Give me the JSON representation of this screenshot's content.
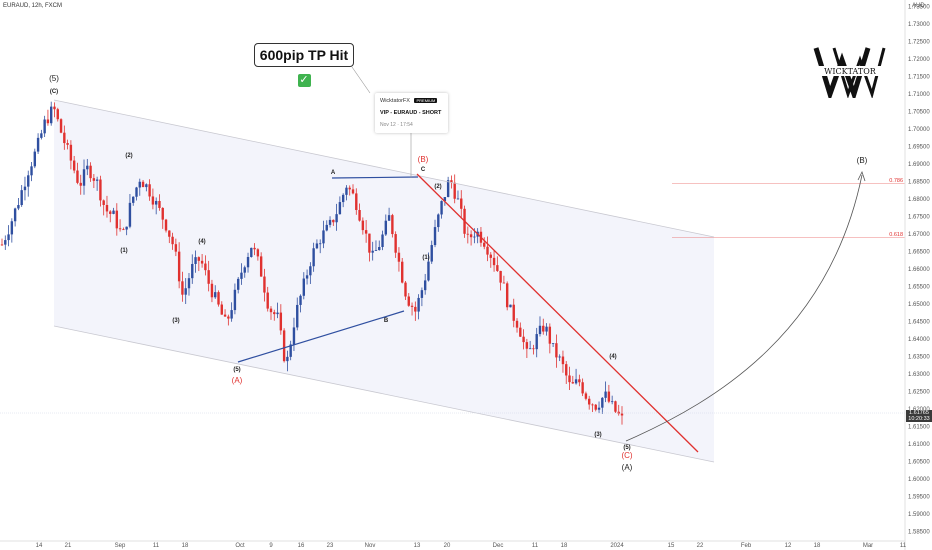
{
  "header": {
    "symbol": "EURAUD, 12h, FXCM",
    "currency": "AUD"
  },
  "callout": {
    "text": "600pip TP Hit",
    "check": "✓"
  },
  "signal_card": {
    "author": "WicktatorFX",
    "badge": "PREMIUM",
    "signal": "VIP - EURAUD - SHORT",
    "time": "Nov 12 · 17:54"
  },
  "logo": {
    "text": "WICKTATOR",
    "icon": "double-w-logo-icon"
  },
  "price_tag": {
    "price": "1.61765",
    "countdown": "10:20:33"
  },
  "colors": {
    "bull": "#2f4fa0",
    "bear": "#e0312f",
    "trend_red": "#e0312f",
    "trend_blue": "#2f4fa0",
    "channel": "#c8c8d0"
  },
  "chart_data": {
    "type": "candlestick",
    "y_axis": {
      "min": 1.585,
      "max": 1.7375,
      "position": "right",
      "tick_labels": [
        "1.73500",
        "1.73000",
        "1.72500",
        "1.72000",
        "1.71500",
        "1.71000",
        "1.70500",
        "1.70000",
        "1.69500",
        "1.69000",
        "1.68500",
        "1.68000",
        "1.67500",
        "1.67000",
        "1.66500",
        "1.66000",
        "1.65500",
        "1.65000",
        "1.64500",
        "1.64000",
        "1.63500",
        "1.63000",
        "1.62500",
        "1.62000",
        "1.61500",
        "1.61000",
        "1.60500",
        "1.60000",
        "1.59500",
        "1.59000",
        "1.58500"
      ]
    },
    "x_axis": {
      "tick_labels": [
        "14",
        "21",
        "Sep",
        "11",
        "18",
        "Oct",
        "9",
        "16",
        "23",
        "Nov",
        "13",
        "20",
        "Dec",
        "11",
        "18",
        "2024",
        "15",
        "22",
        "Feb",
        "12",
        "18",
        "Mar",
        "11"
      ]
    },
    "fib_levels": [
      {
        "label": "0.786",
        "price": 1.6845
      },
      {
        "label": "0.618",
        "price": 1.669
      }
    ],
    "wave_labels": [
      {
        "text": "(5)",
        "style": "big"
      },
      {
        "text": "(C)",
        "style": "small"
      },
      {
        "text": "(2)",
        "style": "small"
      },
      {
        "text": "(1)",
        "style": "small"
      },
      {
        "text": "(3)",
        "style": "small"
      },
      {
        "text": "(4)",
        "style": "small"
      },
      {
        "text": "(5)",
        "style": "small"
      },
      {
        "text": "(A)",
        "style": "red"
      },
      {
        "text": "A",
        "style": "small"
      },
      {
        "text": "B",
        "style": "small"
      },
      {
        "text": "(B)",
        "style": "red"
      },
      {
        "text": "C",
        "style": "small"
      },
      {
        "text": "(2)",
        "style": "small"
      },
      {
        "text": "(1)",
        "style": "small"
      },
      {
        "text": "(4)",
        "style": "small"
      },
      {
        "text": "(3)",
        "style": "small"
      },
      {
        "text": "(5)",
        "style": "small"
      },
      {
        "text": "(C)",
        "style": "red"
      },
      {
        "text": "(A)",
        "style": "big"
      },
      {
        "text": "(B)",
        "style": "big"
      }
    ],
    "price_path": [
      1.667,
      1.673,
      1.68,
      1.688,
      1.694,
      1.702,
      1.706,
      1.698,
      1.691,
      1.684,
      1.689,
      1.685,
      1.677,
      1.675,
      1.669,
      1.679,
      1.686,
      1.683,
      1.678,
      1.673,
      1.666,
      1.652,
      1.66,
      1.663,
      1.656,
      1.65,
      1.644,
      1.652,
      1.661,
      1.667,
      1.66,
      1.649,
      1.646,
      1.632,
      1.646,
      1.655,
      1.664,
      1.669,
      1.672,
      1.677,
      1.684,
      1.68,
      1.672,
      1.663,
      1.668,
      1.675,
      1.663,
      1.652,
      1.648,
      1.656,
      1.668,
      1.678,
      1.686,
      1.679,
      1.668,
      1.671,
      1.668,
      1.663,
      1.657,
      1.648,
      1.644,
      1.635,
      1.64,
      1.644,
      1.637,
      1.633,
      1.626,
      1.628,
      1.623,
      1.621,
      1.624,
      1.62,
      1.617
    ]
  }
}
